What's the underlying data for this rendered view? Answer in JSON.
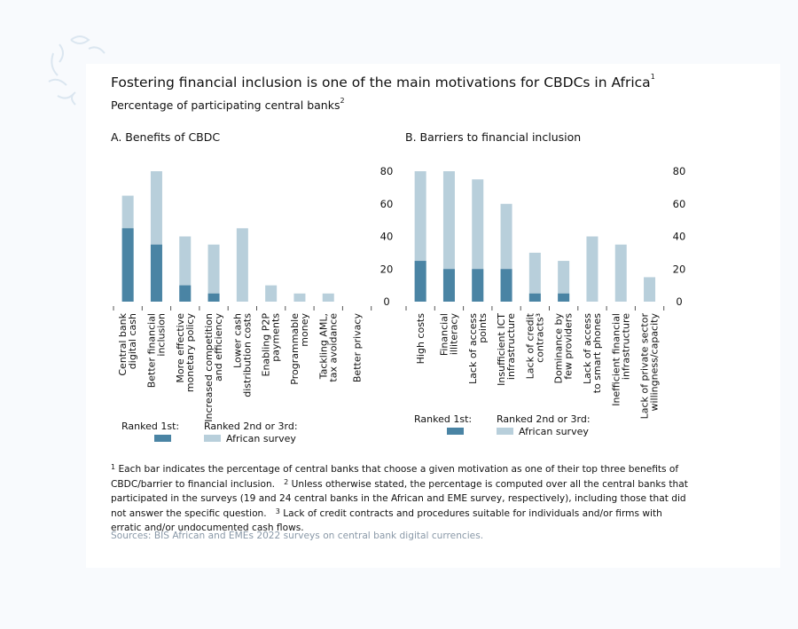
{
  "title": "Fostering financial inclusion is one of the main motivations for CBDCs in Africa",
  "title_sup": "1",
  "subtitle": "Percentage of participating central banks",
  "subtitle_sup": "2",
  "colors": {
    "ranked_1st": "#4a84a4",
    "ranked_2nd_3rd": "#b8cfdb"
  },
  "chart_data": [
    {
      "type": "bar",
      "stacked": true,
      "title": "A. Benefits of CBDC",
      "categories": [
        [
          "Central bank",
          "digital cash"
        ],
        [
          "Better financial",
          "inclusion"
        ],
        [
          "More effective",
          "monetary policy"
        ],
        [
          "Increased competition",
          "and efficiency"
        ],
        [
          "Lower cash",
          "distribution costs"
        ],
        [
          "Enabling P2P",
          "payments"
        ],
        [
          "Programmable",
          "money"
        ],
        [
          "Tackling AML,",
          "tax avoidance"
        ],
        [
          "Better privacy"
        ]
      ],
      "total": [
        65,
        80,
        40,
        35,
        45,
        10,
        5,
        5,
        0
      ],
      "ranked_1st": [
        45,
        35,
        10,
        5,
        0,
        0,
        0,
        0,
        0
      ],
      "ylim": [
        0,
        80
      ],
      "yticks": [
        0,
        20,
        40,
        60,
        80
      ],
      "yaxis_side": "right",
      "grid": false
    },
    {
      "type": "bar",
      "stacked": true,
      "title": "B. Barriers to financial inclusion",
      "categories": [
        [
          "High costs"
        ],
        [
          "Financial",
          "illiteracy"
        ],
        [
          "Lack of access",
          "points"
        ],
        [
          "Insufficient ICT",
          "infrastructure"
        ],
        [
          "Lack of credit",
          "contracts³"
        ],
        [
          "Dominance by",
          "few providers"
        ],
        [
          "Lack of access",
          "to smart phones"
        ],
        [
          "Inefficient financial",
          "infrastructure"
        ],
        [
          "Lack of private sector",
          "willingness/capacity"
        ]
      ],
      "total": [
        80,
        80,
        75,
        60,
        30,
        25,
        40,
        35,
        15
      ],
      "ranked_1st": [
        25,
        20,
        20,
        20,
        5,
        5,
        0,
        0,
        0
      ],
      "ylim": [
        0,
        80
      ],
      "yticks": [
        0,
        20,
        40,
        60,
        80
      ],
      "yaxis_side": "right",
      "grid": false
    }
  ],
  "legend": {
    "ranked_1st": "Ranked 1st:",
    "ranked_2nd_3rd": "Ranked 2nd or 3rd:",
    "survey": "African survey"
  },
  "notes": {
    "n1": "Each bar indicates the percentage of central banks that choose a given motivation as one of their top three benefits of CBDC/barrier to financial inclusion.",
    "n2": "Unless otherwise stated, the percentage is computed over all the central banks that participated in the surveys (19 and 24 central banks in the African and EME survey, respectively), including those that did not answer the specific question.",
    "n3": "Lack of credit contracts and procedures suitable for individuals and/or firms with erratic and/or undocumented cash flows."
  },
  "sources": "Sources: BIS African and EMEs 2022 surveys on central bank digital currencies."
}
